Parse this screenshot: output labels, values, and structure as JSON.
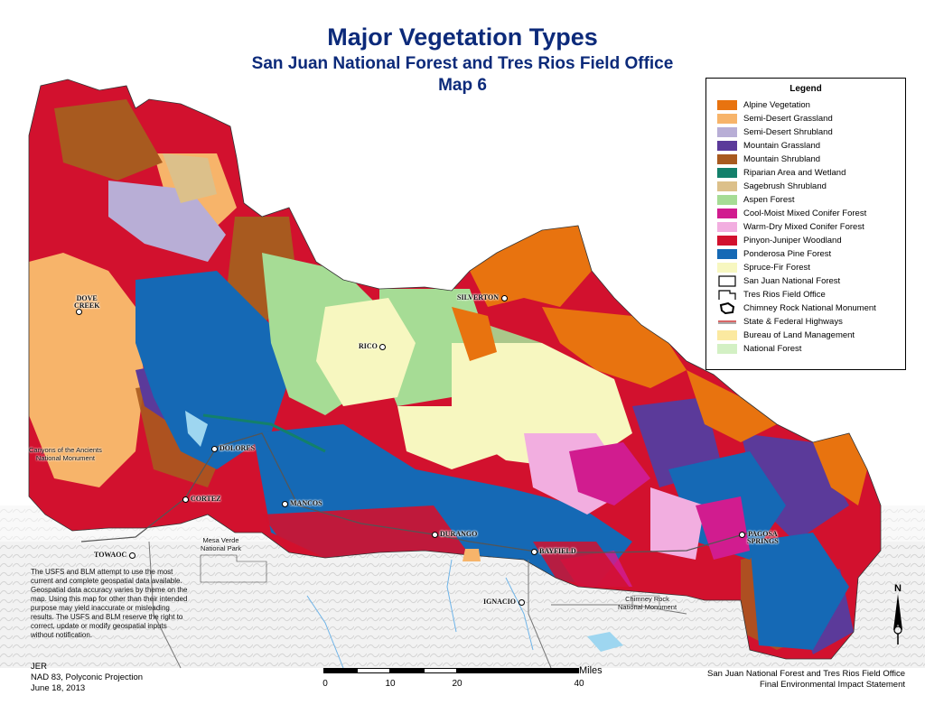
{
  "title": {
    "line1": "Major Vegetation Types",
    "line2": "San Juan National Forest and Tres Rios Field Office",
    "line3": "Map 6"
  },
  "legend": {
    "title": "Legend",
    "items": [
      {
        "label": "Alpine Vegetation",
        "color": "#e8730f"
      },
      {
        "label": "Semi-Desert Grassland",
        "color": "#f7b46a"
      },
      {
        "label": "Semi-Desert Shrubland",
        "color": "#b8aed6"
      },
      {
        "label": "Mountain Grassland",
        "color": "#5b3a9a"
      },
      {
        "label": "Mountain Shrubland",
        "color": "#a85a1f"
      },
      {
        "label": "Riparian Area and Wetland",
        "color": "#13806b"
      },
      {
        "label": "Sagebrush Shrubland",
        "color": "#dcc08a"
      },
      {
        "label": "Aspen Forest",
        "color": "#a6dc95"
      },
      {
        "label": "Cool-Moist Mixed Conifer Forest",
        "color": "#d11c8f"
      },
      {
        "label": "Warm-Dry Mixed Conifer Forest",
        "color": "#f2aee0"
      },
      {
        "label": "Pinyon-Juniper Woodland",
        "color": "#d2112e"
      },
      {
        "label": "Ponderosa Pine Forest",
        "color": "#1569b5"
      },
      {
        "label": "Spruce-Fir Forest",
        "color": "#f7f7c0"
      }
    ],
    "symbols": [
      {
        "label": "San Juan National Forest",
        "icon": "box-outline-icon"
      },
      {
        "label": "Tres Rios Field Office",
        "icon": "open-box-outline-icon"
      },
      {
        "label": "Chimney Rock National Monument",
        "icon": "monument-outline-icon"
      },
      {
        "label": "State & Federal Highways",
        "icon": "highway-line-icon"
      },
      {
        "label": "Bureau of Land Management",
        "color": "#fbe9a0"
      },
      {
        "label": "National Forest",
        "color": "#d3f0c4"
      }
    ]
  },
  "towns": [
    {
      "name": "DOVE\nCREEK"
    },
    {
      "name": "SILVERTON"
    },
    {
      "name": "RICO"
    },
    {
      "name": "DOLORES"
    },
    {
      "name": "CORTEZ"
    },
    {
      "name": "MANCOS"
    },
    {
      "name": "DURANGO"
    },
    {
      "name": "BAYFIELD"
    },
    {
      "name": "PAGOSA\nSPRINGS"
    },
    {
      "name": "TOWAOC"
    },
    {
      "name": "IGNACIO"
    }
  ],
  "areas": {
    "canyons": "Canyons of the Ancients\nNational Monument",
    "mesa_verde": "Mesa Verde\nNational Park",
    "chimney": "Chimney Rock\nNational Monument"
  },
  "note": "The USFS and BLM attempt to use the most current and complete geospatial data available. Geospatial data accuracy varies by theme on the map. Using this map for other than their intended purpose may yield inaccurate or misleading results. The USFS and BLM reserve the right to correct, update or modify geospatial inputs without notification.",
  "credit": {
    "author": "JER",
    "projection": "NAD 83, Polyconic Projection",
    "date": "June 18, 2013"
  },
  "footer": {
    "line1": "San Juan National Forest and Tres Rios Field Office",
    "line2": "Final Environmental Impact Statement"
  },
  "scale": {
    "unit": "Miles",
    "ticks": [
      "0",
      "10",
      "20",
      "40"
    ]
  },
  "north_arrow": {
    "label": "N",
    "icon": "north-arrow-icon"
  }
}
